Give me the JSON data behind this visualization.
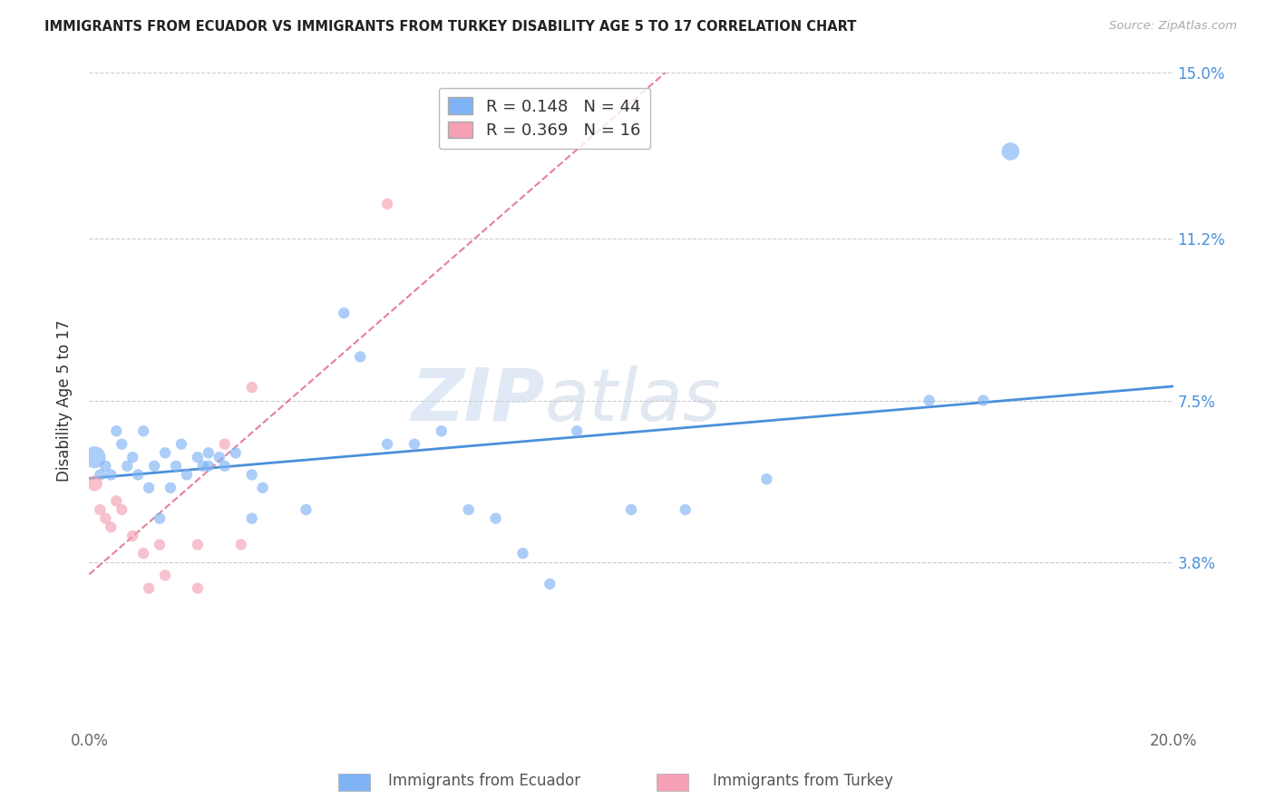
{
  "title": "IMMIGRANTS FROM ECUADOR VS IMMIGRANTS FROM TURKEY DISABILITY AGE 5 TO 17 CORRELATION CHART",
  "source": "Source: ZipAtlas.com",
  "ylabel": "Disability Age 5 to 17",
  "xlim": [
    0.0,
    0.2
  ],
  "ylim": [
    0.0,
    0.15
  ],
  "yticks": [
    0.0,
    0.038,
    0.075,
    0.112,
    0.15
  ],
  "ytick_labels": [
    "",
    "3.8%",
    "7.5%",
    "11.2%",
    "15.0%"
  ],
  "xticks": [
    0.0,
    0.05,
    0.1,
    0.15,
    0.2
  ],
  "xtick_labels": [
    "0.0%",
    "",
    "",
    "",
    "20.0%"
  ],
  "ecuador_color": "#7fb3f5",
  "turkey_color": "#f5a0b5",
  "ecuador_line_color": "#4a90d9",
  "turkey_line_color": "#e06080",
  "R_ecuador": 0.148,
  "N_ecuador": 44,
  "R_turkey": 0.369,
  "N_turkey": 16,
  "watermark": "ZIPatlas",
  "ecuador_points": [
    [
      0.001,
      0.062
    ],
    [
      0.002,
      0.058
    ],
    [
      0.003,
      0.06
    ],
    [
      0.004,
      0.058
    ],
    [
      0.005,
      0.068
    ],
    [
      0.006,
      0.065
    ],
    [
      0.007,
      0.06
    ],
    [
      0.008,
      0.062
    ],
    [
      0.009,
      0.058
    ],
    [
      0.01,
      0.068
    ],
    [
      0.011,
      0.055
    ],
    [
      0.012,
      0.06
    ],
    [
      0.013,
      0.048
    ],
    [
      0.014,
      0.063
    ],
    [
      0.015,
      0.055
    ],
    [
      0.016,
      0.06
    ],
    [
      0.017,
      0.065
    ],
    [
      0.018,
      0.058
    ],
    [
      0.02,
      0.062
    ],
    [
      0.021,
      0.06
    ],
    [
      0.022,
      0.063
    ],
    [
      0.022,
      0.06
    ],
    [
      0.024,
      0.062
    ],
    [
      0.025,
      0.06
    ],
    [
      0.027,
      0.063
    ],
    [
      0.03,
      0.058
    ],
    [
      0.03,
      0.048
    ],
    [
      0.032,
      0.055
    ],
    [
      0.04,
      0.05
    ],
    [
      0.047,
      0.095
    ],
    [
      0.05,
      0.085
    ],
    [
      0.055,
      0.065
    ],
    [
      0.06,
      0.065
    ],
    [
      0.065,
      0.068
    ],
    [
      0.07,
      0.05
    ],
    [
      0.075,
      0.048
    ],
    [
      0.08,
      0.04
    ],
    [
      0.085,
      0.033
    ],
    [
      0.09,
      0.068
    ],
    [
      0.1,
      0.05
    ],
    [
      0.11,
      0.05
    ],
    [
      0.125,
      0.057
    ],
    [
      0.155,
      0.075
    ],
    [
      0.165,
      0.075
    ],
    [
      0.17,
      0.132
    ]
  ],
  "turkey_points": [
    [
      0.001,
      0.056
    ],
    [
      0.002,
      0.05
    ],
    [
      0.003,
      0.048
    ],
    [
      0.004,
      0.046
    ],
    [
      0.005,
      0.052
    ],
    [
      0.006,
      0.05
    ],
    [
      0.008,
      0.044
    ],
    [
      0.01,
      0.04
    ],
    [
      0.011,
      0.032
    ],
    [
      0.013,
      0.042
    ],
    [
      0.014,
      0.035
    ],
    [
      0.02,
      0.032
    ],
    [
      0.02,
      0.042
    ],
    [
      0.025,
      0.065
    ],
    [
      0.028,
      0.042
    ],
    [
      0.03,
      0.078
    ],
    [
      0.055,
      0.12
    ]
  ],
  "ecuador_sizes": [
    300,
    80,
    80,
    80,
    80,
    80,
    80,
    80,
    80,
    80,
    80,
    80,
    80,
    80,
    80,
    80,
    80,
    80,
    80,
    80,
    80,
    80,
    80,
    80,
    80,
    80,
    80,
    80,
    80,
    80,
    80,
    80,
    80,
    80,
    80,
    80,
    80,
    80,
    80,
    80,
    80,
    80,
    80,
    80,
    200
  ],
  "turkey_sizes": [
    150,
    80,
    80,
    80,
    80,
    80,
    80,
    80,
    80,
    80,
    80,
    80,
    80,
    80,
    80,
    80,
    80
  ]
}
